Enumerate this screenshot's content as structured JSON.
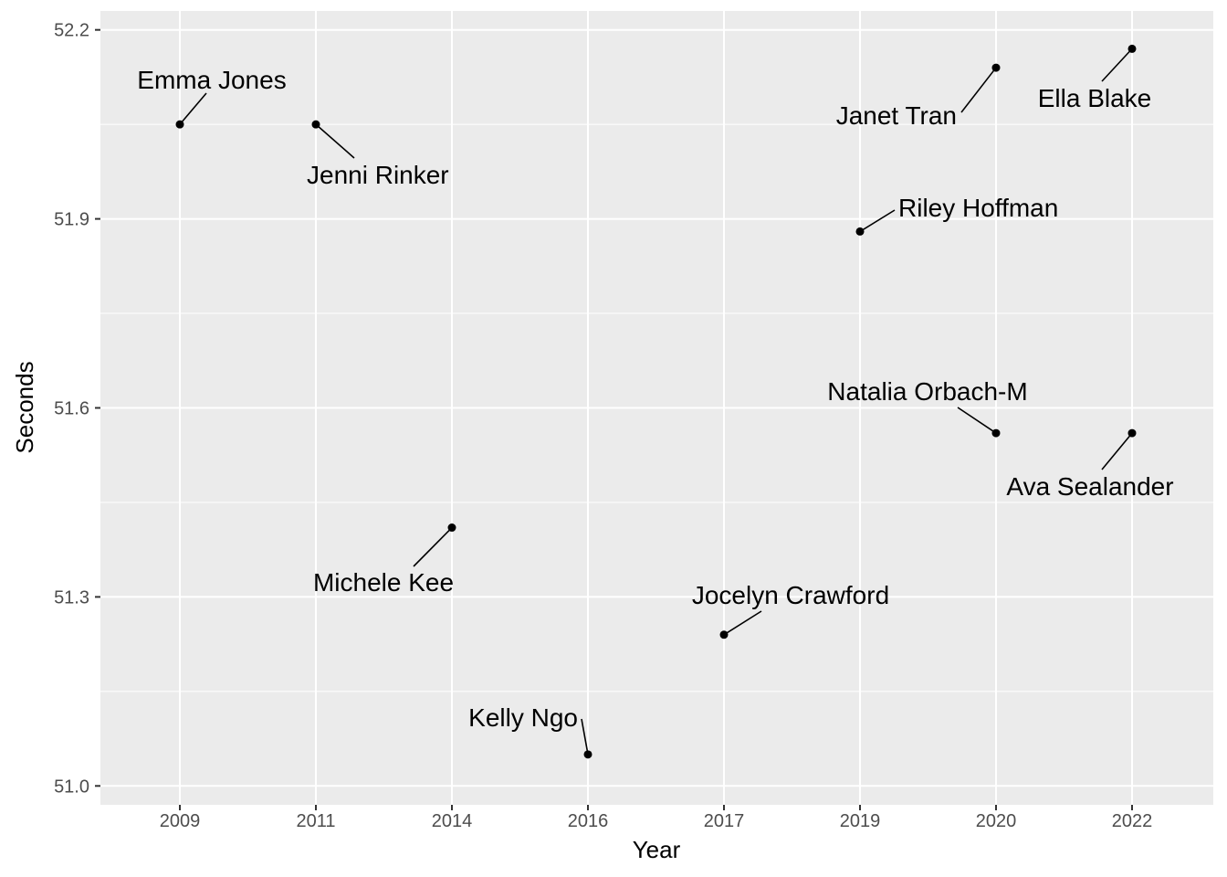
{
  "chart_data": {
    "type": "scatter",
    "title": "",
    "xlabel": "Year",
    "ylabel": "Seconds",
    "x_axis_type": "categorical",
    "categories": [
      "2009",
      "2011",
      "2014",
      "2016",
      "2017",
      "2019",
      "2020",
      "2022"
    ],
    "ylim": [
      50.97,
      52.23
    ],
    "y_ticks": [
      "51.0",
      "51.3",
      "51.6",
      "51.9",
      "52.2"
    ],
    "y_tick_values": [
      51.0,
      51.3,
      51.6,
      51.9,
      52.2
    ],
    "grid": true,
    "legend": "none",
    "panel_background": "#EBEBEB",
    "grid_color": "#FFFFFF",
    "point_color": "#000000",
    "points": [
      {
        "x": "2009",
        "y": 52.05,
        "label": "Emma Jones"
      },
      {
        "x": "2011",
        "y": 52.05,
        "label": "Jenni Rinker"
      },
      {
        "x": "2014",
        "y": 51.41,
        "label": "Michele Kee"
      },
      {
        "x": "2016",
        "y": 51.05,
        "label": "Kelly Ngo"
      },
      {
        "x": "2017",
        "y": 51.24,
        "label": "Jocelyn Crawford"
      },
      {
        "x": "2019",
        "y": 51.88,
        "label": "Riley Hoffman"
      },
      {
        "x": "2020",
        "y": 52.14,
        "label": "Janet Tran"
      },
      {
        "x": "2020",
        "y": 51.56,
        "label": "Natalia Orbach-M"
      },
      {
        "x": "2022",
        "y": 52.17,
        "label": "Ella Blake"
      },
      {
        "x": "2022",
        "y": 51.56,
        "label": "Ava Sealander"
      }
    ]
  }
}
